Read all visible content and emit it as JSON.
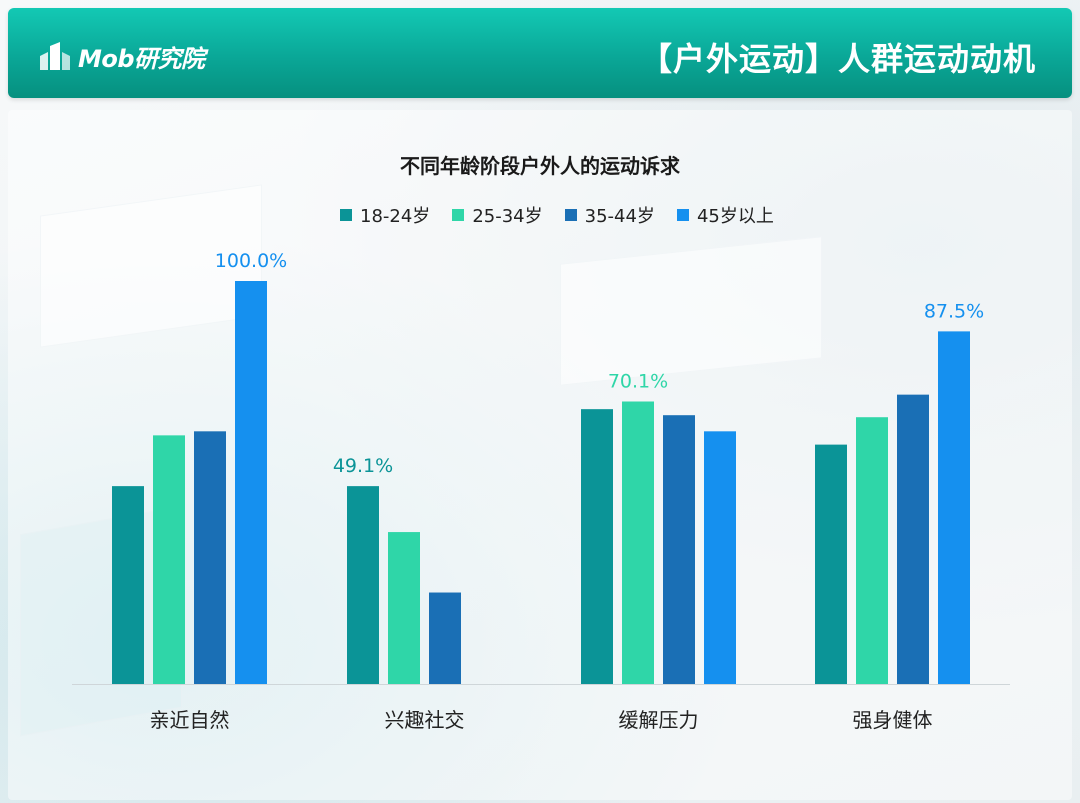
{
  "header": {
    "logo_text": "Mob研究院",
    "page_title": "【户外运动】人群运动动机"
  },
  "colors": {
    "header": "#0aa797",
    "series": [
      "#0b9497",
      "#2fd6a8",
      "#1a6fb5",
      "#1590ef"
    ]
  },
  "chart_data": {
    "type": "bar",
    "title": "不同年龄阶段户外人的运动诉求",
    "categories": [
      "亲近自然",
      "兴趣社交",
      "缓解压力",
      "强身健体"
    ],
    "series": [
      {
        "name": "18-24岁",
        "values": [
          49.1,
          49.1,
          68.2,
          59.4
        ]
      },
      {
        "name": "25-34岁",
        "values": [
          61.7,
          37.7,
          70.1,
          66.2
        ]
      },
      {
        "name": "35-44岁",
        "values": [
          62.7,
          22.7,
          66.7,
          71.8
        ]
      },
      {
        "name": "45岁以上",
        "values": [
          100.0,
          0,
          62.7,
          87.5
        ]
      }
    ],
    "data_labels": [
      {
        "category": 0,
        "series": 3,
        "text": "100.0%"
      },
      {
        "category": 1,
        "series": 0,
        "text": "49.1%"
      },
      {
        "category": 2,
        "series": 1,
        "text": "70.1%"
      },
      {
        "category": 3,
        "series": 3,
        "text": "87.5%"
      }
    ],
    "ylim": [
      0,
      100
    ],
    "grid": false,
    "legend_position": "top"
  }
}
